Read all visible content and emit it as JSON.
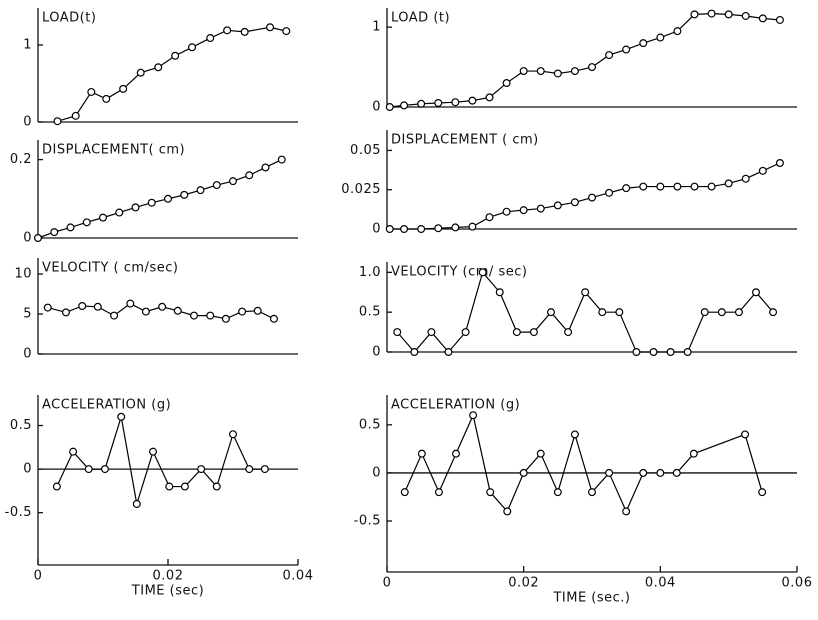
{
  "chart_data": [
    {
      "type": "line",
      "title": "LOAD(t)",
      "color": "#000000",
      "x": [
        0.003,
        0.0058,
        0.0082,
        0.0105,
        0.0131,
        0.0158,
        0.0185,
        0.0211,
        0.0237,
        0.0265,
        0.0291,
        0.0318,
        0.0357,
        0.0382
      ],
      "values": [
        0.01,
        0.08,
        0.39,
        0.3,
        0.43,
        0.64,
        0.71,
        0.86,
        0.97,
        1.09,
        1.19,
        1.17,
        1.23,
        1.18
      ],
      "xlim": [
        0,
        0.04
      ],
      "ylim": [
        0,
        1.48
      ],
      "yticks": [
        0,
        1
      ]
    },
    {
      "type": "line",
      "title": "DISPLACEMENT( cm)",
      "color": "#000000",
      "x": [
        0,
        0.0025,
        0.005,
        0.0075,
        0.01,
        0.0125,
        0.015,
        0.0175,
        0.02,
        0.0225,
        0.025,
        0.0275,
        0.03,
        0.0325,
        0.035,
        0.0375
      ],
      "values": [
        0,
        0.015,
        0.027,
        0.04,
        0.052,
        0.065,
        0.078,
        0.09,
        0.1,
        0.11,
        0.122,
        0.135,
        0.145,
        0.16,
        0.18,
        0.2
      ],
      "xlim": [
        0,
        0.04
      ],
      "ylim": [
        0,
        0.25
      ],
      "yticks": [
        0,
        0.2
      ]
    },
    {
      "type": "line",
      "title": "VELOCITY ( cm/sec)",
      "color": "#000000",
      "x": [
        0.0015,
        0.0043,
        0.0068,
        0.0092,
        0.0117,
        0.0142,
        0.0166,
        0.0191,
        0.0215,
        0.024,
        0.0265,
        0.0289,
        0.0314,
        0.0338,
        0.0363
      ],
      "values": [
        5.8,
        5.2,
        6,
        5.9,
        4.8,
        6.3,
        5.3,
        5.9,
        5.4,
        4.8,
        4.8,
        4.4,
        5.3,
        5.4,
        4.4
      ],
      "xlim": [
        0,
        0.04
      ],
      "ylim": [
        0,
        12
      ],
      "yticks": [
        0,
        5,
        10
      ]
    },
    {
      "type": "line",
      "title": "ACCELERATION   (g)",
      "color": "#000000",
      "x": [
        0.0029,
        0.0054,
        0.0078,
        0.0103,
        0.0128,
        0.0152,
        0.0177,
        0.0202,
        0.0226,
        0.0251,
        0.0275,
        0.03,
        0.0325,
        0.0349
      ],
      "values": [
        -0.2,
        0.2,
        0,
        0,
        0.6,
        -0.4,
        0.2,
        -0.2,
        -0.2,
        0,
        -0.2,
        0.4,
        0,
        0
      ],
      "xlim": [
        0,
        0.04
      ],
      "ylim": [
        -1.1,
        0.85
      ],
      "yticks": [
        -0.5,
        0,
        0.5
      ],
      "xticks": [
        0,
        0.02,
        0.04
      ],
      "xlabel": "TIME (sec)"
    },
    {
      "type": "line",
      "title": "LOAD (t)",
      "color": "#000000",
      "x": [
        0.0004,
        0.0025,
        0.005,
        0.0075,
        0.01,
        0.0125,
        0.015,
        0.0175,
        0.02,
        0.0225,
        0.025,
        0.0275,
        0.03,
        0.0325,
        0.035,
        0.0375,
        0.04,
        0.0425,
        0.045,
        0.0475,
        0.05,
        0.0525,
        0.055,
        0.0575
      ],
      "values": [
        0,
        0.02,
        0.04,
        0.05,
        0.06,
        0.08,
        0.12,
        0.3,
        0.45,
        0.45,
        0.42,
        0.45,
        0.5,
        0.65,
        0.72,
        0.8,
        0.87,
        0.95,
        1.16,
        1.17,
        1.16,
        1.14,
        1.11,
        1.09
      ],
      "xlim": [
        0,
        0.06
      ],
      "ylim": [
        0,
        1.24
      ],
      "yticks": [
        0,
        1
      ]
    },
    {
      "type": "line",
      "title": "DISPLACEMENT ( cm)",
      "color": "#000000",
      "x": [
        0.0004,
        0.0025,
        0.005,
        0.0075,
        0.01,
        0.0125,
        0.015,
        0.0175,
        0.02,
        0.0225,
        0.025,
        0.0275,
        0.03,
        0.0325,
        0.035,
        0.0375,
        0.04,
        0.0425,
        0.045,
        0.0475,
        0.05,
        0.0525,
        0.055,
        0.0575
      ],
      "values": [
        0,
        0,
        0,
        0.0005,
        0.001,
        0.0015,
        0.0075,
        0.011,
        0.012,
        0.013,
        0.015,
        0.017,
        0.02,
        0.023,
        0.026,
        0.027,
        0.027,
        0.027,
        0.027,
        0.027,
        0.029,
        0.032,
        0.037,
        0.042
      ],
      "xlim": [
        0,
        0.06
      ],
      "ylim": [
        0,
        0.063
      ],
      "yticks": [
        0,
        0.025,
        0.05
      ]
    },
    {
      "type": "line",
      "title": "VELOCITY (cm/ sec)",
      "color": "#000000",
      "x": [
        0.0015,
        0.004,
        0.0065,
        0.009,
        0.0115,
        0.014,
        0.0165,
        0.019,
        0.0215,
        0.024,
        0.0265,
        0.029,
        0.0315,
        0.034,
        0.0365,
        0.039,
        0.0415,
        0.044,
        0.0465,
        0.049,
        0.0515,
        0.054,
        0.0565
      ],
      "values": [
        0.25,
        0,
        0.25,
        0,
        0.25,
        1.0,
        0.75,
        0.25,
        0.25,
        0.5,
        0.25,
        0.75,
        0.5,
        0.5,
        0,
        0,
        0,
        0,
        0.5,
        0.5,
        0.5,
        0.75,
        0.5
      ],
      "xlim": [
        0,
        0.06
      ],
      "ylim": [
        0,
        1.13
      ],
      "yticks": [
        0,
        0.5,
        {
          "value": 1,
          "label": "1.0"
        }
      ]
    },
    {
      "type": "line",
      "title": "ACCELERATION (g)",
      "color": "#000000",
      "x": [
        0.0026,
        0.0051,
        0.0076,
        0.0101,
        0.0126,
        0.0151,
        0.0176,
        0.02,
        0.0225,
        0.025,
        0.0275,
        0.03,
        0.0325,
        0.035,
        0.0375,
        0.04,
        0.0424,
        0.0449,
        0.0524,
        0.0549
      ],
      "values": [
        -0.2,
        0.2,
        -0.2,
        0.2,
        0.6,
        -0.2,
        -0.4,
        0,
        0.2,
        -0.2,
        0.4,
        -0.2,
        0,
        -0.4,
        0,
        0,
        0,
        0.2,
        0.4,
        -0.2
      ],
      "xlim": [
        0,
        0.06
      ],
      "ylim": [
        -1.03,
        0.81
      ],
      "yticks": [
        -0.5,
        0,
        0.5
      ],
      "xticks": [
        0,
        0.02,
        0.04,
        0.06
      ],
      "xlabel": "TIME (sec.)"
    }
  ]
}
